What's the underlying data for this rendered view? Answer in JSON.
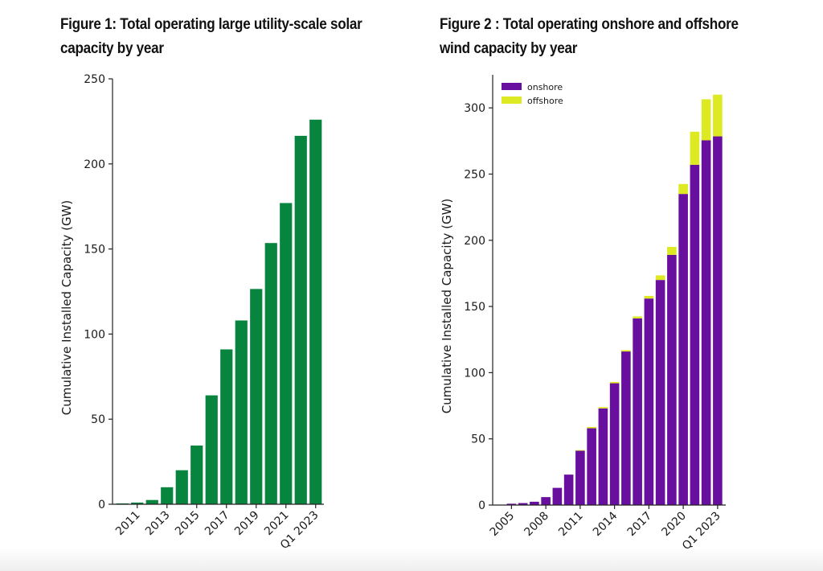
{
  "chart_data": [
    {
      "type": "bar",
      "title": "Figure 1: Total operating large utility-scale solar capacity by year",
      "ylabel": "Cumulative Installed Capacity (GW)",
      "xlabel": "",
      "ylim": [
        0,
        250
      ],
      "yticks": [
        0,
        50,
        100,
        150,
        200,
        250
      ],
      "categories": [
        "2010",
        "2011",
        "2012",
        "2013",
        "2014",
        "2015",
        "2016",
        "2017",
        "2018",
        "2019",
        "2020",
        "2021",
        "2022",
        "Q1 2023"
      ],
      "xtick_labels": [
        "2011",
        "2013",
        "2015",
        "2017",
        "2019",
        "2021",
        "Q1 2023"
      ],
      "series": [
        {
          "values": [
            0.5,
            1,
            2.5,
            10,
            20,
            34.5,
            64,
            91,
            108,
            126.5,
            153.5,
            177,
            216.5,
            226
          ]
        }
      ],
      "colors": [
        "#07843e"
      ],
      "grid": false
    },
    {
      "type": "bar",
      "stacked": true,
      "title": "Figure 2 : Total operating onshore and offshore wind capacity by year",
      "ylabel": "Cumulative Installed Capacity (GW)",
      "xlabel": "",
      "ylim": [
        0,
        325
      ],
      "yticks": [
        0,
        50,
        100,
        150,
        200,
        250,
        300
      ],
      "categories": [
        "2004",
        "2005",
        "2006",
        "2007",
        "2008",
        "2009",
        "2010",
        "2011",
        "2012",
        "2013",
        "2014",
        "2015",
        "2016",
        "2017",
        "2018",
        "2019",
        "2020",
        "2021",
        "2022",
        "Q1 2023"
      ],
      "xtick_labels": [
        "2005",
        "2008",
        "2011",
        "2014",
        "2017",
        "2020",
        "Q1 2023"
      ],
      "series": [
        {
          "name": "onshore",
          "values": [
            0.3,
            1,
            1.5,
            2.5,
            6,
            13,
            23,
            41,
            58,
            73,
            92,
            116,
            141,
            156,
            170,
            189,
            235,
            257,
            275.5,
            278.5
          ]
        },
        {
          "name": "offshore",
          "values": [
            0,
            0,
            0,
            0,
            0,
            0,
            0,
            0.5,
            1,
            1,
            1,
            1,
            1.5,
            2,
            3.5,
            6,
            7.5,
            25,
            31,
            31.5
          ]
        }
      ],
      "colors": [
        "#680f9f",
        "#dde922"
      ],
      "legend_position": "top-left",
      "grid": false
    }
  ]
}
